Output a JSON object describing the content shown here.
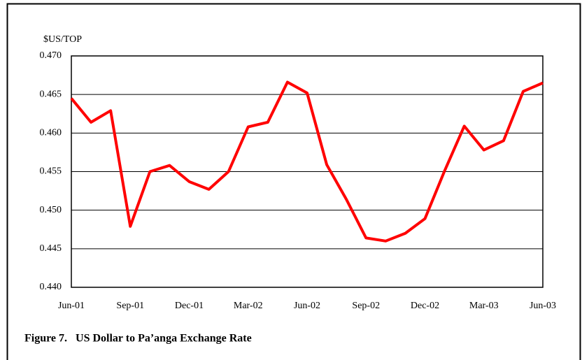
{
  "chart_data": {
    "type": "line",
    "title": "Figure 7.   US Dollar to Pa’anga Exchange Rate",
    "y_label": "$US/TOP",
    "categories": [
      "Jun-01",
      null,
      null,
      "Sep-01",
      null,
      null,
      "Dec-01",
      null,
      null,
      "Mar-02",
      null,
      null,
      "Jun-02",
      null,
      null,
      "Sep-02",
      null,
      null,
      "Dec-02",
      null,
      null,
      "Mar-03",
      null,
      null,
      "Jun-03"
    ],
    "values": [
      0.4645,
      0.4614,
      0.4629,
      0.4479,
      0.455,
      0.4558,
      0.4537,
      0.4527,
      0.455,
      0.4608,
      0.4614,
      0.4666,
      0.4652,
      0.4559,
      0.4514,
      0.4464,
      0.446,
      0.447,
      0.4489,
      0.4551,
      0.4609,
      0.4578,
      0.459,
      0.4654,
      0.4665
    ],
    "color": "#ff0000",
    "ylim": [
      0.44,
      0.47
    ],
    "yticks": [
      {
        "value": 0.44,
        "label": "0.440"
      },
      0.445,
      {
        "value": 0.45,
        "label": "0.450"
      },
      0.455,
      {
        "value": 0.46,
        "label": "0.460"
      },
      0.465,
      {
        "value": 0.47,
        "label": "0.470"
      }
    ],
    "grid": true
  }
}
